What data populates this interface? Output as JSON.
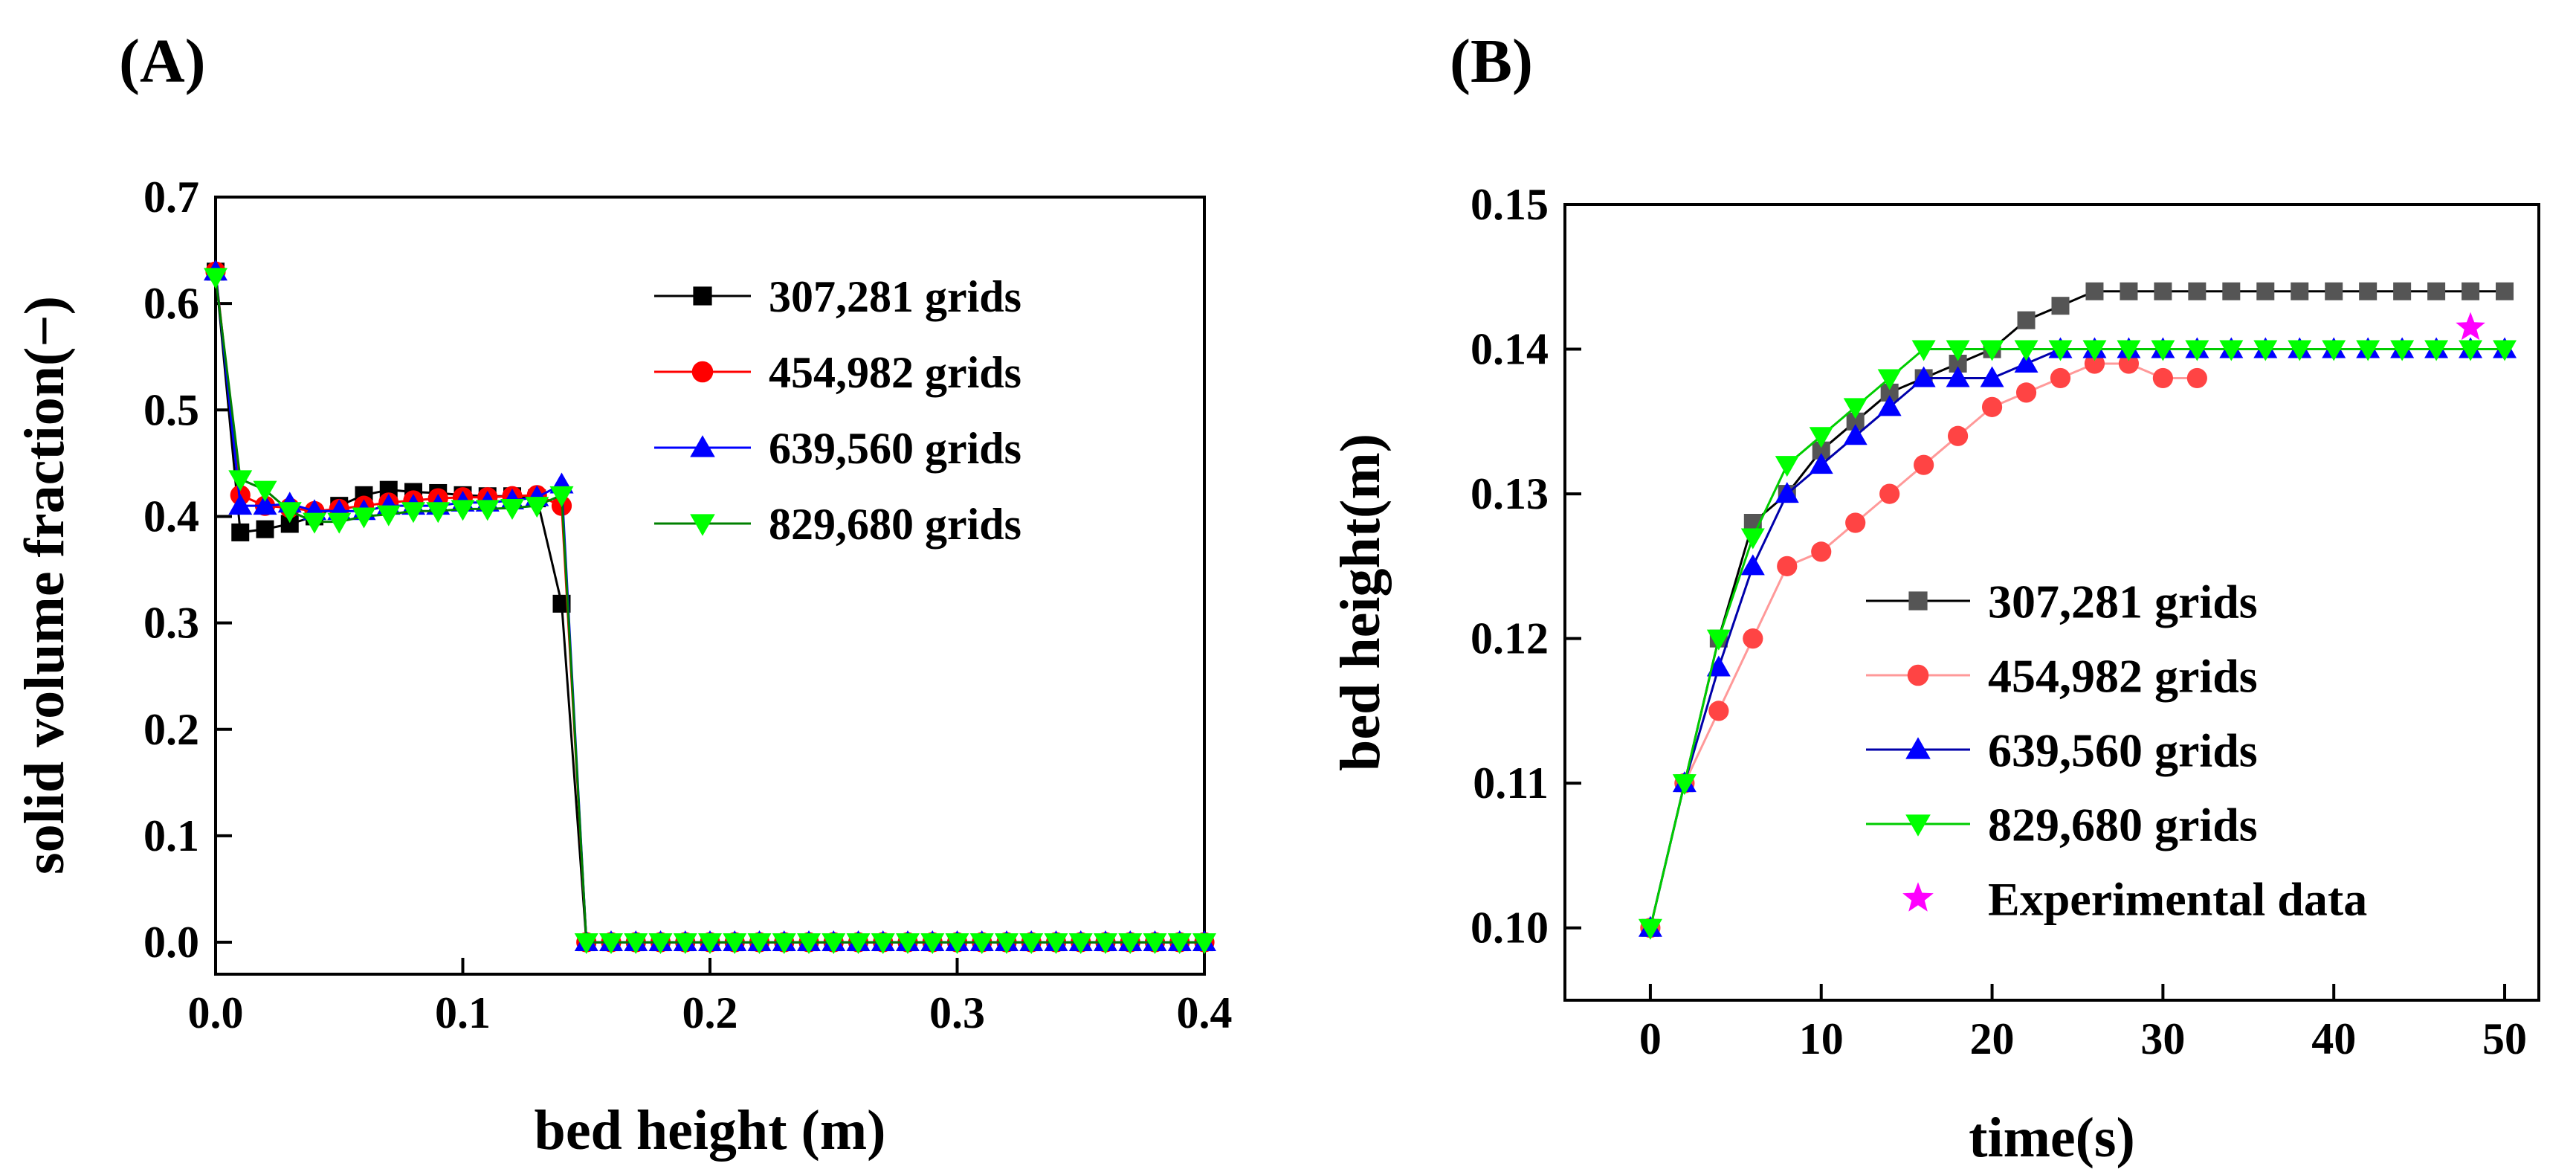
{
  "figure": {
    "colors": {
      "307,281 grids": "#000000",
      "454,982 grids": "#ff0000",
      "639,560 grids": "#0000ff",
      "829,680 grids": "#00ff00",
      "Experimental data": "#ff00ff"
    }
  },
  "chart_data": [
    {
      "panel_label": "(A)",
      "type": "line",
      "title": "",
      "xlabel": "bed height (m)",
      "ylabel": "solid volume fraction(−)",
      "xlim": [
        0.0,
        0.4
      ],
      "ylim": [
        -0.03,
        0.7
      ],
      "xticks": [
        0.0,
        0.1,
        0.2,
        0.3,
        0.4
      ],
      "xtick_labels": [
        "0.0",
        "0.1",
        "0.2",
        "0.3",
        "0.4"
      ],
      "yticks": [
        0.0,
        0.1,
        0.2,
        0.3,
        0.4,
        0.5,
        0.6,
        0.7
      ],
      "ytick_labels": [
        "0.0",
        "0.1",
        "0.2",
        "0.3",
        "0.4",
        "0.5",
        "0.6",
        "0.7"
      ],
      "legend": "top-right",
      "grid": false,
      "series": [
        {
          "name": "307,281 grids",
          "marker": "square",
          "color": "#000000",
          "line_color": "#000000",
          "x": [
            0.0,
            0.01,
            0.02,
            0.03,
            0.04,
            0.05,
            0.06,
            0.07,
            0.08,
            0.09,
            0.1,
            0.11,
            0.12,
            0.13,
            0.14,
            0.15,
            0.16,
            0.17,
            0.18,
            0.19,
            0.2,
            0.21,
            0.22,
            0.23,
            0.24,
            0.25,
            0.26,
            0.27,
            0.28,
            0.29,
            0.3,
            0.31,
            0.32,
            0.33,
            0.34,
            0.35,
            0.36,
            0.37,
            0.38,
            0.39,
            0.4
          ],
          "y": [
            0.63,
            0.385,
            0.388,
            0.393,
            0.4,
            0.41,
            0.42,
            0.425,
            0.423,
            0.422,
            0.42,
            0.419,
            0.419,
            0.417,
            0.318,
            0.0,
            0,
            0,
            0,
            0,
            0,
            0,
            0,
            0,
            0,
            0,
            0,
            0,
            0,
            0,
            0,
            0,
            0,
            0,
            0,
            0,
            0,
            0,
            0,
            0,
            0
          ]
        },
        {
          "name": "454,982 grids",
          "marker": "circle",
          "color": "#ff0000",
          "line_color": "#ff0000",
          "x": [
            0.0,
            0.01,
            0.02,
            0.03,
            0.04,
            0.05,
            0.06,
            0.07,
            0.08,
            0.09,
            0.1,
            0.11,
            0.12,
            0.13,
            0.14,
            0.15,
            0.16,
            0.17,
            0.18,
            0.19,
            0.2,
            0.21,
            0.22,
            0.23,
            0.24,
            0.25,
            0.26,
            0.27,
            0.28,
            0.29,
            0.3,
            0.31,
            0.32,
            0.33,
            0.34,
            0.35,
            0.36,
            0.37,
            0.38,
            0.39,
            0.4
          ],
          "y": [
            0.63,
            0.42,
            0.41,
            0.408,
            0.405,
            0.407,
            0.41,
            0.413,
            0.415,
            0.417,
            0.418,
            0.418,
            0.419,
            0.42,
            0.41,
            0.0,
            0,
            0,
            0,
            0,
            0,
            0,
            0,
            0,
            0,
            0,
            0,
            0,
            0,
            0,
            0,
            0,
            0,
            0,
            0,
            0,
            0,
            0,
            0,
            0,
            0
          ]
        },
        {
          "name": "639,560 grids",
          "marker": "triangle-up",
          "color": "#0000ff",
          "line_color": "#0000ff",
          "x": [
            0.0,
            0.01,
            0.02,
            0.03,
            0.04,
            0.05,
            0.06,
            0.07,
            0.08,
            0.09,
            0.1,
            0.11,
            0.12,
            0.13,
            0.14,
            0.15,
            0.16,
            0.17,
            0.18,
            0.19,
            0.2,
            0.21,
            0.22,
            0.23,
            0.24,
            0.25,
            0.26,
            0.27,
            0.28,
            0.29,
            0.3,
            0.31,
            0.32,
            0.33,
            0.34,
            0.35,
            0.36,
            0.37,
            0.38,
            0.39,
            0.4
          ],
          "y": [
            0.63,
            0.41,
            0.41,
            0.412,
            0.405,
            0.405,
            0.405,
            0.41,
            0.41,
            0.41,
            0.413,
            0.413,
            0.415,
            0.418,
            0.43,
            0.0,
            0,
            0,
            0,
            0,
            0,
            0,
            0,
            0,
            0,
            0,
            0,
            0,
            0,
            0,
            0,
            0,
            0,
            0,
            0,
            0,
            0,
            0,
            0,
            0,
            0
          ]
        },
        {
          "name": "829,680 grids",
          "marker": "triangle-down",
          "color": "#00ff00",
          "line_color": "#008000",
          "x": [
            0.0,
            0.01,
            0.02,
            0.03,
            0.04,
            0.05,
            0.06,
            0.07,
            0.08,
            0.09,
            0.1,
            0.11,
            0.12,
            0.13,
            0.14,
            0.15,
            0.16,
            0.17,
            0.18,
            0.19,
            0.2,
            0.21,
            0.22,
            0.23,
            0.24,
            0.25,
            0.26,
            0.27,
            0.28,
            0.29,
            0.3,
            0.31,
            0.32,
            0.33,
            0.34,
            0.35,
            0.36,
            0.37,
            0.38,
            0.39,
            0.4
          ],
          "y": [
            0.625,
            0.435,
            0.425,
            0.405,
            0.395,
            0.395,
            0.4,
            0.402,
            0.405,
            0.405,
            0.407,
            0.407,
            0.408,
            0.41,
            0.42,
            0.0,
            0,
            0,
            0,
            0,
            0,
            0,
            0,
            0,
            0,
            0,
            0,
            0,
            0,
            0,
            0,
            0,
            0,
            0,
            0,
            0,
            0,
            0,
            0,
            0,
            0
          ]
        }
      ]
    },
    {
      "panel_label": "(B)",
      "type": "line",
      "title": "",
      "xlabel": "time(s)",
      "ylabel": "bed height(m)",
      "xlim": [
        -5,
        52
      ],
      "ylim": [
        0.095,
        0.15
      ],
      "xticks": [
        0,
        10,
        20,
        30,
        40,
        50
      ],
      "xtick_labels": [
        "0",
        "10",
        "20",
        "30",
        "40",
        "50"
      ],
      "yticks": [
        0.1,
        0.11,
        0.12,
        0.13,
        0.14,
        0.15
      ],
      "ytick_labels": [
        "0.10",
        "0.11",
        "0.12",
        "0.13",
        "0.14",
        "0.15"
      ],
      "legend": "bottom-right",
      "grid": false,
      "series": [
        {
          "name": "307,281 grids",
          "marker": "square",
          "color": "#555555",
          "line_color": "#000000",
          "x": [
            0,
            2,
            4,
            6,
            8,
            10,
            12,
            14,
            16,
            18,
            20,
            22,
            24,
            26,
            28,
            30,
            32,
            34,
            36,
            38,
            40,
            42,
            44,
            46,
            48,
            50
          ],
          "y": [
            0.1,
            0.11,
            0.12,
            0.128,
            0.13,
            0.133,
            0.135,
            0.137,
            0.138,
            0.139,
            0.14,
            0.142,
            0.143,
            0.144,
            0.144,
            0.144,
            0.144,
            0.144,
            0.144,
            0.144,
            0.144,
            0.144,
            0.144,
            0.144,
            0.144,
            0.144
          ]
        },
        {
          "name": "454,982 grids",
          "marker": "circle",
          "color": "#ff4444",
          "line_color": "#ff9999",
          "x": [
            0,
            2,
            4,
            6,
            8,
            10,
            12,
            14,
            16,
            18,
            20,
            22,
            24,
            26,
            28,
            30,
            32
          ],
          "y": [
            0.1,
            0.11,
            0.115,
            0.12,
            0.125,
            0.126,
            0.128,
            0.13,
            0.132,
            0.134,
            0.136,
            0.137,
            0.138,
            0.139,
            0.139,
            0.138,
            0.138
          ]
        },
        {
          "name": "639,560 grids",
          "marker": "triangle-up",
          "color": "#0000ff",
          "line_color": "#0000aa",
          "x": [
            0,
            2,
            4,
            6,
            8,
            10,
            12,
            14,
            16,
            18,
            20,
            22,
            24,
            26,
            28,
            30,
            32,
            34,
            36,
            38,
            40,
            42,
            44,
            46,
            48,
            50
          ],
          "y": [
            0.1,
            0.11,
            0.118,
            0.125,
            0.13,
            0.132,
            0.134,
            0.136,
            0.138,
            0.138,
            0.138,
            0.139,
            0.14,
            0.14,
            0.14,
            0.14,
            0.14,
            0.14,
            0.14,
            0.14,
            0.14,
            0.14,
            0.14,
            0.14,
            0.14,
            0.14
          ]
        },
        {
          "name": "829,680 grids",
          "marker": "triangle-down",
          "color": "#00ff00",
          "line_color": "#00cc00",
          "x": [
            0,
            2,
            4,
            6,
            8,
            10,
            12,
            14,
            16,
            18,
            20,
            22,
            24,
            26,
            28,
            30,
            32,
            34,
            36,
            38,
            40,
            42,
            44,
            46,
            48,
            50
          ],
          "y": [
            0.1,
            0.11,
            0.12,
            0.127,
            0.132,
            0.134,
            0.136,
            0.138,
            0.14,
            0.14,
            0.14,
            0.14,
            0.14,
            0.14,
            0.14,
            0.14,
            0.14,
            0.14,
            0.14,
            0.14,
            0.14,
            0.14,
            0.14,
            0.14,
            0.14,
            0.14
          ]
        },
        {
          "name": "Experimental data",
          "marker": "star",
          "color": "#ff00ff",
          "line_color": "none",
          "x": [
            48
          ],
          "y": [
            0.1415
          ]
        }
      ]
    }
  ]
}
